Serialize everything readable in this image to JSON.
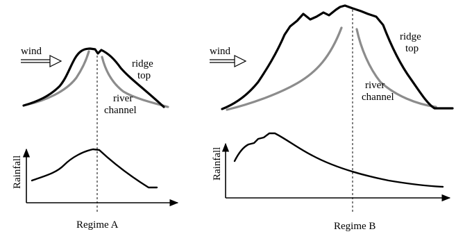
{
  "regimes": [
    {
      "caption": "Regime A",
      "wind_label": "wind",
      "ridge_label_line1": "ridge",
      "ridge_label_line2": "top",
      "river_label_line1": "river",
      "river_label_line2": "channel",
      "y_axis_label": "Rainfall"
    },
    {
      "caption": "Regime B",
      "wind_label": "wind",
      "ridge_label_line1": "ridge",
      "ridge_label_line2": "top",
      "river_label_line1": "river",
      "river_label_line2": "channel",
      "y_axis_label": "Rainfall"
    }
  ],
  "colors": {
    "ridge": "#000000",
    "river": "#8c8c8c",
    "rainfall": "#000000"
  }
}
